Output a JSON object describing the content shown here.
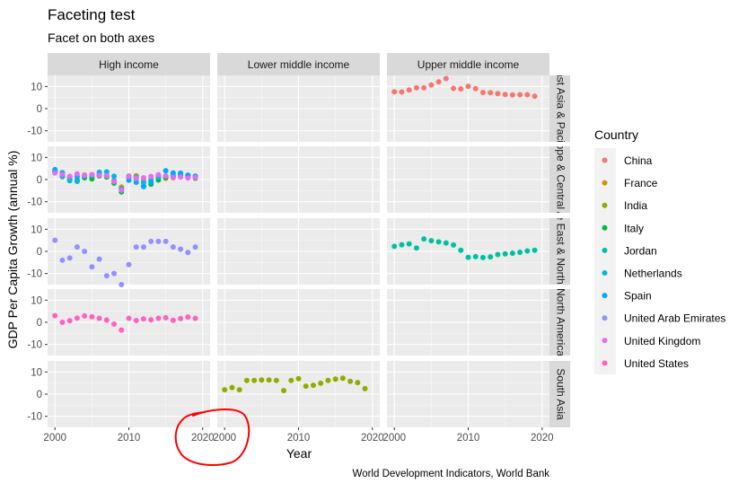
{
  "chart_data": {
    "type": "scatter",
    "title": "Faceting test",
    "subtitle": "Facet on both axes",
    "xlabel": "Year",
    "ylabel": "GDP Per Capita Growth (annual %)",
    "caption": "World Development Indicators, World Bank",
    "facet_cols": [
      "High income",
      "Lower middle income",
      "Upper middle income"
    ],
    "facet_rows": [
      "East Asia & Pacific",
      "Europe & Central Asia",
      "Middle East & North Africa",
      "North America",
      "South Asia"
    ],
    "xlim": [
      1999,
      2021
    ],
    "x_ticks": [
      2000,
      2010,
      2020
    ],
    "ylim": [
      -15,
      15
    ],
    "y_ticks": [
      10,
      0,
      -10
    ],
    "grid": true,
    "legend": {
      "title": "Country",
      "position": "right"
    },
    "series": [
      {
        "name": "China",
        "color": "#F8766D",
        "facet_row": 0,
        "facet_col": 2,
        "x": [
          2000,
          2001,
          2002,
          2003,
          2004,
          2005,
          2006,
          2007,
          2008,
          2009,
          2010,
          2011,
          2012,
          2013,
          2014,
          2015,
          2016,
          2017,
          2018,
          2019
        ],
        "y": [
          7.6,
          7.5,
          8.4,
          9.4,
          9.4,
          10.7,
          12.1,
          13.6,
          9.1,
          8.9,
          10.1,
          9.0,
          7.3,
          7.2,
          6.8,
          6.4,
          6.2,
          6.3,
          6.3,
          5.6
        ]
      },
      {
        "name": "France",
        "color": "#D39200",
        "facet_row": 1,
        "facet_col": 0,
        "x": [
          2000,
          2001,
          2002,
          2003,
          2004,
          2005,
          2006,
          2007,
          2008,
          2009,
          2010,
          2011,
          2012,
          2013,
          2014,
          2015,
          2016,
          2017,
          2018,
          2019
        ],
        "y": [
          3.2,
          1.2,
          0.4,
          0.1,
          2.1,
          1.0,
          1.8,
          1.8,
          -0.4,
          -3.4,
          1.5,
          1.7,
          -0.2,
          0.1,
          0.5,
          0.6,
          0.8,
          2.0,
          1.5,
          1.5
        ]
      },
      {
        "name": "India",
        "color": "#93AA00",
        "facet_row": 4,
        "facet_col": 1,
        "x": [
          2000,
          2001,
          2002,
          2003,
          2004,
          2005,
          2006,
          2007,
          2008,
          2009,
          2010,
          2011,
          2012,
          2013,
          2014,
          2015,
          2016,
          2017,
          2018,
          2019
        ],
        "y": [
          2.0,
          3.0,
          2.0,
          6.2,
          6.2,
          6.4,
          6.4,
          6.2,
          1.6,
          6.2,
          7.0,
          3.6,
          4.0,
          4.9,
          6.2,
          6.8,
          7.2,
          5.8,
          5.2,
          2.5
        ]
      },
      {
        "name": "Italy",
        "color": "#00BA38",
        "facet_row": 1,
        "facet_col": 0,
        "x": [
          2000,
          2001,
          2002,
          2003,
          2004,
          2005,
          2006,
          2007,
          2008,
          2009,
          2010,
          2011,
          2012,
          2013,
          2014,
          2015,
          2016,
          2017,
          2018,
          2019
        ],
        "y": [
          3.7,
          1.9,
          0.0,
          -0.6,
          0.8,
          0.3,
          1.6,
          1.1,
          -1.6,
          -5.6,
          1.5,
          0.3,
          -3.0,
          -2.1,
          -0.2,
          0.9,
          1.4,
          1.8,
          1.0,
          0.6
        ]
      },
      {
        "name": "Jordan",
        "color": "#00C19F",
        "facet_row": 2,
        "facet_col": 2,
        "x": [
          2000,
          2001,
          2002,
          2003,
          2004,
          2005,
          2006,
          2007,
          2008,
          2009,
          2010,
          2011,
          2012,
          2013,
          2014,
          2015,
          2016,
          2017,
          2018,
          2019
        ],
        "y": [
          2.3,
          3.0,
          3.4,
          1.5,
          5.6,
          4.8,
          4.3,
          3.8,
          2.9,
          0.5,
          -2.7,
          -2.4,
          -2.8,
          -2.5,
          -1.4,
          -1.1,
          -0.8,
          -0.4,
          0.2,
          0.5
        ]
      },
      {
        "name": "Netherlands",
        "color": "#00B9E3",
        "facet_row": 1,
        "facet_col": 0,
        "x": [
          2000,
          2001,
          2002,
          2003,
          2004,
          2005,
          2006,
          2007,
          2008,
          2009,
          2010,
          2011,
          2012,
          2013,
          2014,
          2015,
          2016,
          2017,
          2018,
          2019
        ],
        "y": [
          3.5,
          1.4,
          -0.5,
          -0.8,
          1.6,
          1.9,
          3.3,
          3.5,
          1.5,
          -4.2,
          0.8,
          1.1,
          -1.3,
          -0.4,
          1.1,
          1.6,
          1.9,
          2.6,
          2.0,
          1.3
        ]
      },
      {
        "name": "Spain",
        "color": "#00A9FF",
        "facet_row": 1,
        "facet_col": 0,
        "x": [
          2000,
          2001,
          2002,
          2003,
          2004,
          2005,
          2006,
          2007,
          2008,
          2009,
          2010,
          2011,
          2012,
          2013,
          2014,
          2015,
          2016,
          2017,
          2018,
          2019
        ],
        "y": [
          4.5,
          3.1,
          1.3,
          1.4,
          1.6,
          2.1,
          2.4,
          1.8,
          -0.6,
          -4.5,
          -0.3,
          -1.2,
          -3.2,
          -1.2,
          1.7,
          4.0,
          3.0,
          2.9,
          2.0,
          1.5
        ]
      },
      {
        "name": "United Arab Emirates",
        "color": "#9590FF",
        "facet_row": 2,
        "facet_col": 0,
        "x": [
          2000,
          2001,
          2002,
          2003,
          2004,
          2005,
          2006,
          2007,
          2008,
          2009,
          2010,
          2011,
          2012,
          2013,
          2014,
          2015,
          2016,
          2017,
          2018,
          2019
        ],
        "y": [
          5.0,
          -4.0,
          -3.0,
          2.0,
          0.0,
          -7.0,
          -3.5,
          -11.0,
          -10.0,
          -15.0,
          -6.0,
          2.0,
          2.0,
          4.5,
          4.5,
          4.5,
          2.0,
          1.0,
          -0.5,
          2.0
        ]
      },
      {
        "name": "United Kingdom",
        "color": "#E76BF3",
        "facet_row": 1,
        "facet_col": 0,
        "x": [
          2000,
          2001,
          2002,
          2003,
          2004,
          2005,
          2006,
          2007,
          2008,
          2009,
          2010,
          2011,
          2012,
          2013,
          2014,
          2015,
          2016,
          2017,
          2018,
          2019
        ],
        "y": [
          3.0,
          2.3,
          1.4,
          2.6,
          1.9,
          2.3,
          1.9,
          1.7,
          -0.9,
          -4.8,
          1.4,
          0.6,
          0.8,
          1.4,
          2.2,
          1.6,
          1.0,
          1.1,
          0.7,
          0.9
        ]
      },
      {
        "name": "United States",
        "color": "#FF62BC",
        "facet_row": 3,
        "facet_col": 0,
        "x": [
          2000,
          2001,
          2002,
          2003,
          2004,
          2005,
          2006,
          2007,
          2008,
          2009,
          2010,
          2011,
          2012,
          2013,
          2014,
          2015,
          2016,
          2017,
          2018,
          2019
        ],
        "y": [
          3.0,
          0.0,
          0.7,
          1.9,
          2.9,
          2.5,
          1.8,
          1.0,
          -0.8,
          -3.5,
          1.8,
          0.8,
          1.5,
          1.1,
          1.8,
          2.1,
          0.9,
          1.7,
          2.4,
          1.8
        ]
      }
    ]
  }
}
